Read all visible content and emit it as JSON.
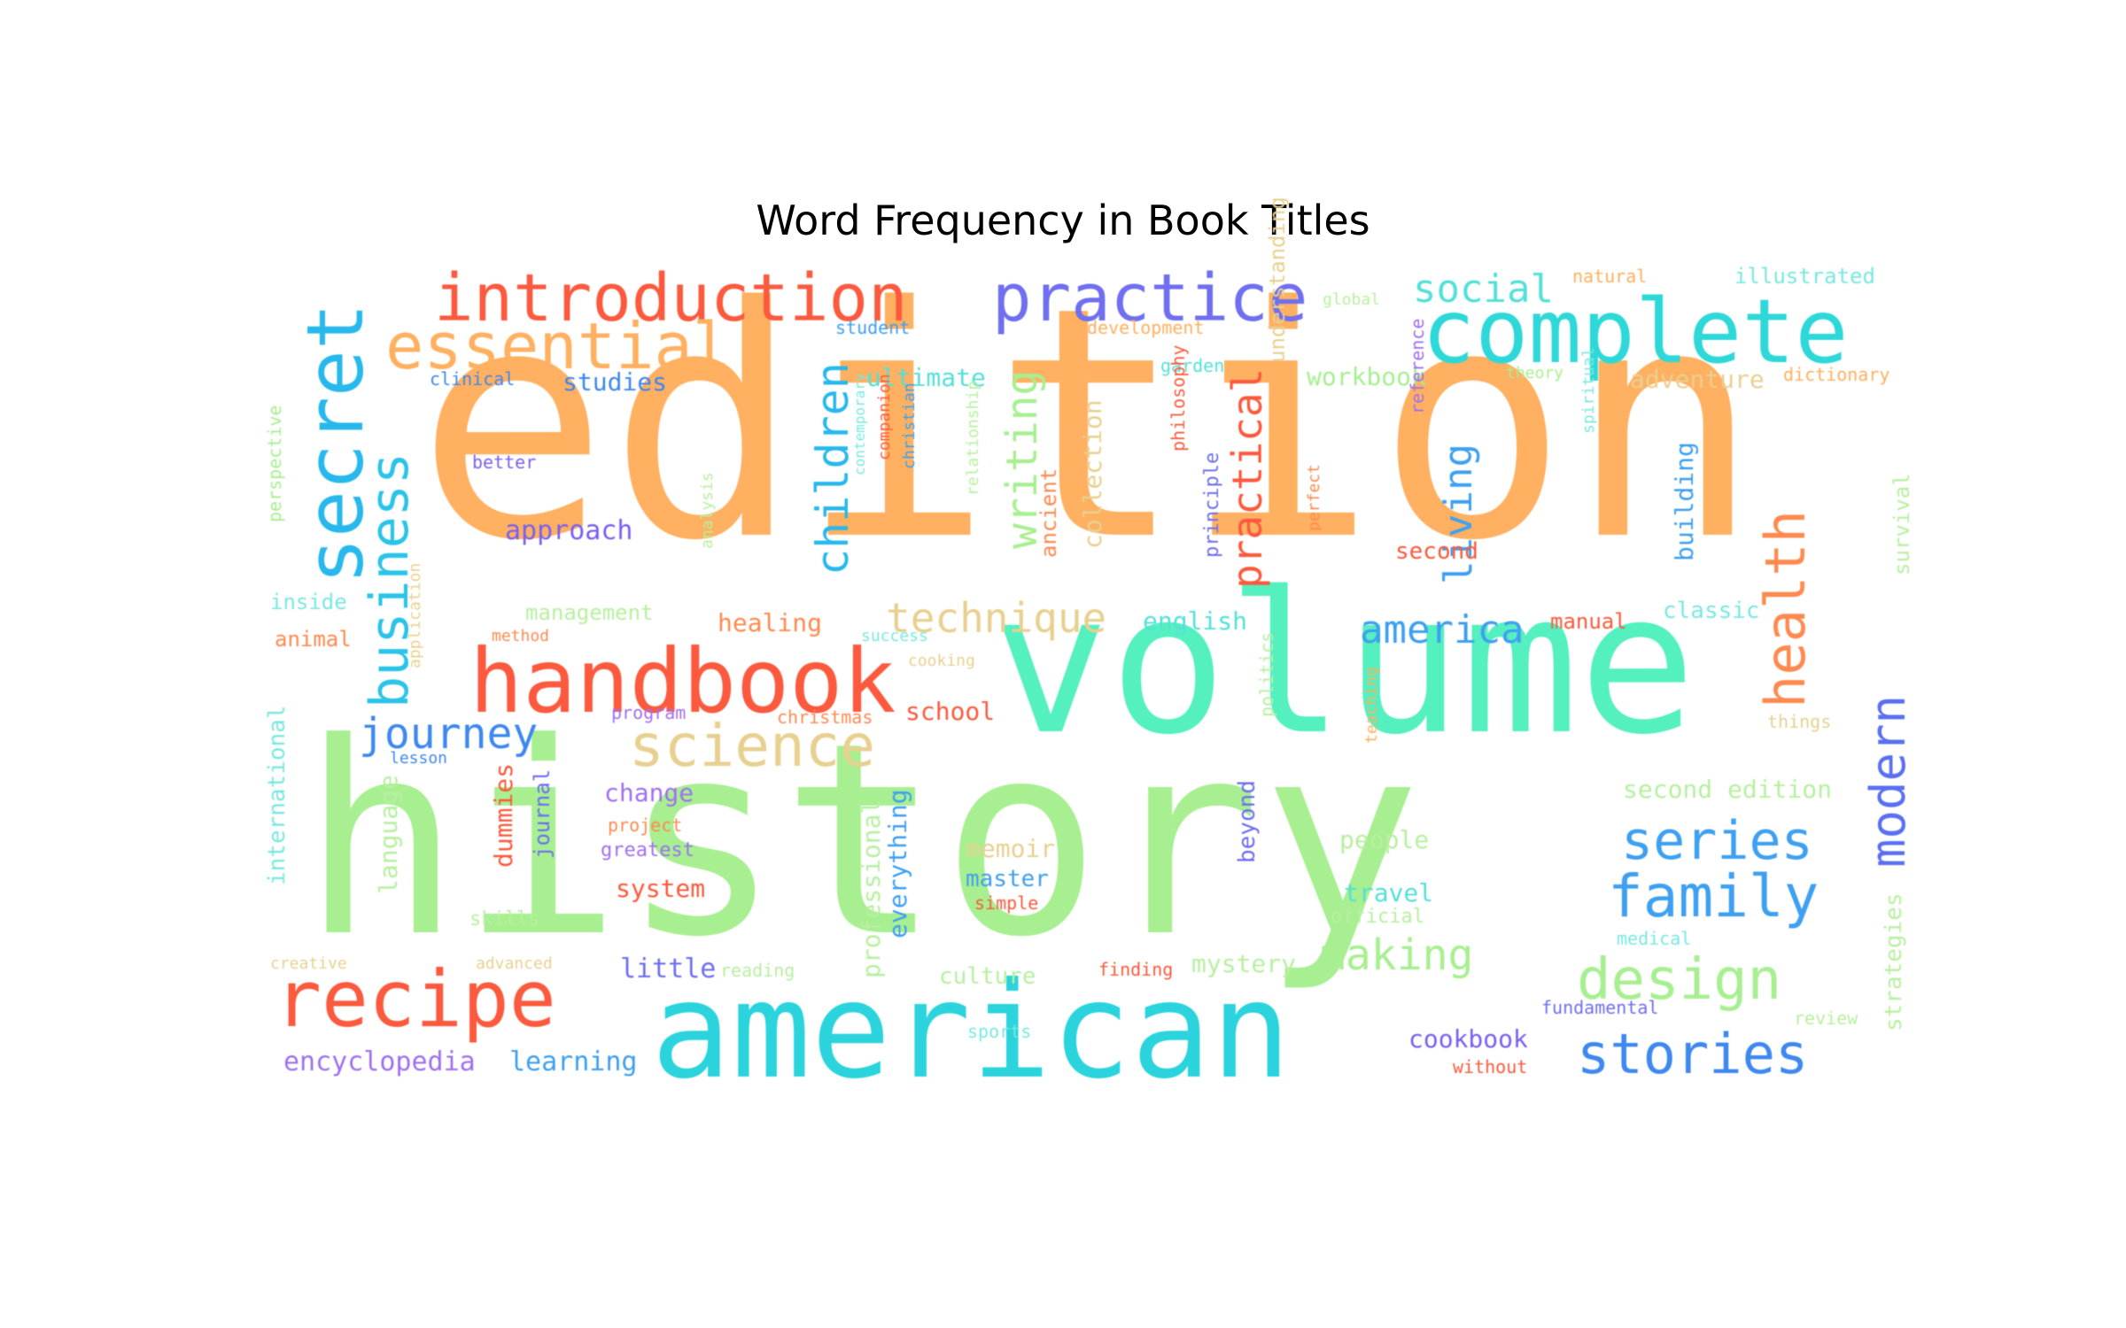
{
  "title": "Word Frequency in Book Titles",
  "words": [
    {
      "text": "edition",
      "color": "#ffb060",
      "rot": false
    },
    {
      "text": "history",
      "color": "#a7ef90",
      "rot": false
    },
    {
      "text": "volume",
      "color": "#55f0c0",
      "rot": false
    },
    {
      "text": "american",
      "color": "#2bd4dc",
      "rot": false
    },
    {
      "text": "handbook",
      "color": "#fc5a3e",
      "rot": false
    },
    {
      "text": "complete",
      "color": "#2fd8d8",
      "rot": false
    },
    {
      "text": "introduction",
      "color": "#fc5a3e",
      "rot": false
    },
    {
      "text": "practice",
      "color": "#6f6ff0",
      "rot": false
    },
    {
      "text": "secret",
      "color": "#28b8ec",
      "rot": true
    },
    {
      "text": "recipe",
      "color": "#fc5a3e",
      "rot": false
    },
    {
      "text": "essential",
      "color": "#ffb060",
      "rot": false
    },
    {
      "text": "science",
      "color": "#e8d090",
      "rot": false
    },
    {
      "text": "business",
      "color": "#2bc4e8",
      "rot": true
    },
    {
      "text": "health",
      "color": "#ff8a50",
      "rot": true
    },
    {
      "text": "family",
      "color": "#3ea0f0",
      "rot": false
    },
    {
      "text": "design",
      "color": "#a7ef90",
      "rot": false
    },
    {
      "text": "stories",
      "color": "#3e88f0",
      "rot": false
    },
    {
      "text": "series",
      "color": "#3ea0f0",
      "rot": false
    },
    {
      "text": "modern",
      "color": "#5a70f0",
      "rot": true
    },
    {
      "text": "technique",
      "color": "#e8d090",
      "rot": false
    },
    {
      "text": "america",
      "color": "#3ea0f0",
      "rot": false
    },
    {
      "text": "journey",
      "color": "#3e88f0",
      "rot": false
    },
    {
      "text": "social",
      "color": "#55e0d8",
      "rot": false
    },
    {
      "text": "children",
      "color": "#28b8ec",
      "rot": true
    },
    {
      "text": "writing",
      "color": "#a7ef90",
      "rot": true
    },
    {
      "text": "living",
      "color": "#3ea0f0",
      "rot": true
    },
    {
      "text": "practical",
      "color": "#fc5a3e",
      "rot": true
    },
    {
      "text": "making",
      "color": "#a7ef90",
      "rot": false
    },
    {
      "text": "encyclopedia",
      "color": "#a070f0",
      "rot": false
    },
    {
      "text": "learning",
      "color": "#3ea0f0",
      "rot": false
    },
    {
      "text": "cookbook",
      "color": "#7a60f0",
      "rot": false
    },
    {
      "text": "little",
      "color": "#6f6ff0",
      "rot": false
    },
    {
      "text": "approach",
      "color": "#7a60f0",
      "rot": false
    },
    {
      "text": "studies",
      "color": "#3e88f0",
      "rot": false
    },
    {
      "text": "ultimate",
      "color": "#55e0d8",
      "rot": false
    },
    {
      "text": "workbook",
      "color": "#a7ef90",
      "rot": false
    },
    {
      "text": "adventure",
      "color": "#e8d090",
      "rot": false
    },
    {
      "text": "illustrated",
      "color": "#7ae8e0",
      "rot": false
    },
    {
      "text": "dictionary",
      "color": "#ffb060",
      "rot": false
    },
    {
      "text": "natural",
      "color": "#ffb060",
      "rot": false
    },
    {
      "text": "global",
      "color": "#b7f0a0",
      "rot": false
    },
    {
      "text": "student",
      "color": "#3ea0f0",
      "rot": false
    },
    {
      "text": "development",
      "color": "#ffb060",
      "rot": false
    },
    {
      "text": "garden",
      "color": "#55e0d8",
      "rot": false
    },
    {
      "text": "theory",
      "color": "#a7ef90",
      "rot": false
    },
    {
      "text": "clinical",
      "color": "#3e88f0",
      "rot": false
    },
    {
      "text": "better",
      "color": "#7a60f0",
      "rot": false
    },
    {
      "text": "perspective",
      "color": "#a7ef90",
      "rot": true
    },
    {
      "text": "inside",
      "color": "#7ae8e0",
      "rot": false
    },
    {
      "text": "animal",
      "color": "#ff8a50",
      "rot": false
    },
    {
      "text": "international",
      "color": "#7ae8e0",
      "rot": true
    },
    {
      "text": "management",
      "color": "#b7f0a0",
      "rot": false
    },
    {
      "text": "method",
      "color": "#ff8a50",
      "rot": false
    },
    {
      "text": "application",
      "color": "#e8d090",
      "rot": true
    },
    {
      "text": "healing",
      "color": "#ff8a50",
      "rot": false
    },
    {
      "text": "success",
      "color": "#7ae8e0",
      "rot": false
    },
    {
      "text": "cooking",
      "color": "#e8d090",
      "rot": false
    },
    {
      "text": "english",
      "color": "#55e0d8",
      "rot": false
    },
    {
      "text": "manual",
      "color": "#fc5a3e",
      "rot": false
    },
    {
      "text": "classic",
      "color": "#7ae8e0",
      "rot": false
    },
    {
      "text": "school",
      "color": "#fc5a3e",
      "rot": false
    },
    {
      "text": "christmas",
      "color": "#ff8a50",
      "rot": false
    },
    {
      "text": "program",
      "color": "#a070f0",
      "rot": false
    },
    {
      "text": "lesson",
      "color": "#3e88f0",
      "rot": false
    },
    {
      "text": "change",
      "color": "#a070f0",
      "rot": false
    },
    {
      "text": "project",
      "color": "#ff8a50",
      "rot": false
    },
    {
      "text": "greatest",
      "color": "#a070f0",
      "rot": false
    },
    {
      "text": "system",
      "color": "#fc5a3e",
      "rot": false
    },
    {
      "text": "dummies",
      "color": "#fc5a3e",
      "rot": true
    },
    {
      "text": "journal",
      "color": "#6f6ff0",
      "rot": true
    },
    {
      "text": "language",
      "color": "#b7f0a0",
      "rot": true
    },
    {
      "text": "skills",
      "color": "#b7f0a0",
      "rot": false
    },
    {
      "text": "creative",
      "color": "#e8d090",
      "rot": false
    },
    {
      "text": "advanced",
      "color": "#e8d090",
      "rot": false
    },
    {
      "text": "reading",
      "color": "#b7f0a0",
      "rot": false
    },
    {
      "text": "culture",
      "color": "#b7f0a0",
      "rot": false
    },
    {
      "text": "finding",
      "color": "#fc5a3e",
      "rot": false
    },
    {
      "text": "mystery",
      "color": "#b7f0a0",
      "rot": false
    },
    {
      "text": "memoir",
      "color": "#e8d090",
      "rot": false
    },
    {
      "text": "master",
      "color": "#3ea0f0",
      "rot": false
    },
    {
      "text": "simple",
      "color": "#fc5a3e",
      "rot": false
    },
    {
      "text": "sports",
      "color": "#7ae8e0",
      "rot": false
    },
    {
      "text": "professional",
      "color": "#b7f0a0",
      "rot": true
    },
    {
      "text": "everything",
      "color": "#3ea0f0",
      "rot": true
    },
    {
      "text": "beyond",
      "color": "#6f6ff0",
      "rot": true
    },
    {
      "text": "people",
      "color": "#b7f0a0",
      "rot": false
    },
    {
      "text": "travel",
      "color": "#55e0d8",
      "rot": false
    },
    {
      "text": "official",
      "color": "#b7f0a0",
      "rot": false
    },
    {
      "text": "medical",
      "color": "#7ae8e0",
      "rot": false
    },
    {
      "text": "fundamental",
      "color": "#6f6ff0",
      "rot": false
    },
    {
      "text": "without",
      "color": "#fc5a3e",
      "rot": false
    },
    {
      "text": "review",
      "color": "#b7f0a0",
      "rot": false
    },
    {
      "text": "strategies",
      "color": "#b7f0a0",
      "rot": true
    },
    {
      "text": "second edition",
      "color": "#b7f0a0",
      "rot": false
    },
    {
      "text": "things",
      "color": "#e8d090",
      "rot": false
    },
    {
      "text": "teaching",
      "color": "#ffb060",
      "rot": true
    },
    {
      "text": "politics",
      "color": "#b7f0a0",
      "rot": true
    },
    {
      "text": "analysis",
      "color": "#b7f0a0",
      "rot": true
    },
    {
      "text": "contemporary",
      "color": "#7ae8e0",
      "rot": true
    },
    {
      "text": "companion",
      "color": "#fc5a3e",
      "rot": true
    },
    {
      "text": "christian",
      "color": "#3ea0f0",
      "rot": true
    },
    {
      "text": "relationship",
      "color": "#b7f0a0",
      "rot": true
    },
    {
      "text": "ancient",
      "color": "#ff8a50",
      "rot": true
    },
    {
      "text": "collection",
      "color": "#e8d090",
      "rot": true
    },
    {
      "text": "philosophy",
      "color": "#fc5a3e",
      "rot": true
    },
    {
      "text": "principle",
      "color": "#6f6ff0",
      "rot": true
    },
    {
      "text": "understanding",
      "color": "#e8d090",
      "rot": true
    },
    {
      "text": "perfect",
      "color": "#ff8a50",
      "rot": true
    },
    {
      "text": "reference",
      "color": "#a070f0",
      "rot": true
    },
    {
      "text": "second",
      "color": "#fc5a3e",
      "rot": false
    },
    {
      "text": "spiritual",
      "color": "#7ae8e0",
      "rot": true
    },
    {
      "text": "building",
      "color": "#3ea0f0",
      "rot": true
    },
    {
      "text": "survival",
      "color": "#b7f0a0",
      "rot": true
    }
  ]
}
